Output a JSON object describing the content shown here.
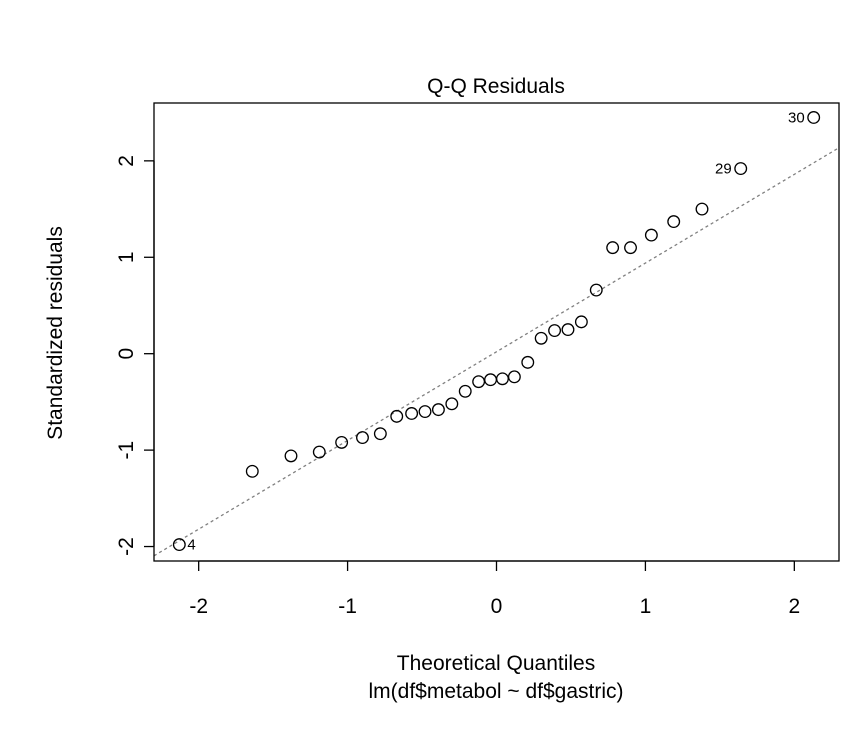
{
  "chart_data": {
    "type": "scatter",
    "title": "Q-Q Residuals",
    "xlabel": "Theoretical Quantiles",
    "subtitle": "lm(df$metabol ~ df$gastric)",
    "ylabel": "Standardized residuals",
    "xlim": [
      -2.3,
      2.3
    ],
    "ylim": [
      -2.15,
      2.6
    ],
    "xticks": [
      -2,
      -1,
      0,
      1,
      2
    ],
    "xtick_labels": [
      "-2",
      "-1",
      "0",
      "1",
      "2"
    ],
    "yticks": [
      -2,
      -1,
      0,
      1,
      2
    ],
    "ytick_labels": [
      "-2",
      "-1",
      "0",
      "1",
      "2"
    ],
    "grid": false,
    "legend": "none",
    "reference_line": {
      "slope": 0.92,
      "intercept": 0.02,
      "style": "dotted",
      "color": "#808080"
    },
    "points": [
      {
        "x": -2.13,
        "y": -1.98,
        "label": "4"
      },
      {
        "x": -1.64,
        "y": -1.22
      },
      {
        "x": -1.38,
        "y": -1.06
      },
      {
        "x": -1.19,
        "y": -1.02
      },
      {
        "x": -1.04,
        "y": -0.92
      },
      {
        "x": -0.9,
        "y": -0.87
      },
      {
        "x": -0.78,
        "y": -0.83
      },
      {
        "x": -0.67,
        "y": -0.65
      },
      {
        "x": -0.57,
        "y": -0.62
      },
      {
        "x": -0.48,
        "y": -0.6
      },
      {
        "x": -0.39,
        "y": -0.58
      },
      {
        "x": -0.3,
        "y": -0.52
      },
      {
        "x": -0.21,
        "y": -0.39
      },
      {
        "x": -0.12,
        "y": -0.29
      },
      {
        "x": -0.04,
        "y": -0.27
      },
      {
        "x": 0.04,
        "y": -0.26
      },
      {
        "x": 0.12,
        "y": -0.24
      },
      {
        "x": 0.21,
        "y": -0.09
      },
      {
        "x": 0.3,
        "y": 0.16
      },
      {
        "x": 0.39,
        "y": 0.24
      },
      {
        "x": 0.48,
        "y": 0.25
      },
      {
        "x": 0.57,
        "y": 0.33
      },
      {
        "x": 0.67,
        "y": 0.66
      },
      {
        "x": 0.78,
        "y": 1.1
      },
      {
        "x": 0.9,
        "y": 1.1
      },
      {
        "x": 1.04,
        "y": 1.23
      },
      {
        "x": 1.19,
        "y": 1.37
      },
      {
        "x": 1.38,
        "y": 1.5
      },
      {
        "x": 1.64,
        "y": 1.92,
        "label": "29"
      },
      {
        "x": 2.13,
        "y": 2.45,
        "label": "30"
      }
    ]
  }
}
